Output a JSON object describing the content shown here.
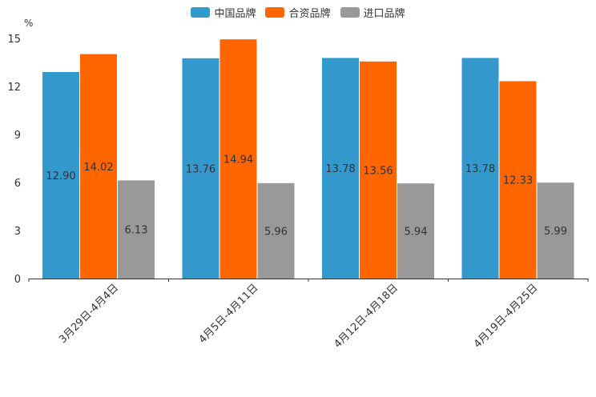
{
  "chart_data": {
    "type": "bar",
    "unit": "%",
    "categories": [
      "3月29日-4月4日",
      "4月5日-4月11日",
      "4月12日-4月18日",
      "4月19日-4月25日"
    ],
    "series": [
      {
        "name": "中国品牌",
        "color": "#3399cc",
        "values": [
          12.9,
          13.76,
          13.78,
          13.78
        ],
        "labels": [
          "12.90",
          "13.76",
          "13.78",
          "13.78"
        ]
      },
      {
        "name": "合资品牌",
        "color": "#ff6600",
        "values": [
          14.02,
          14.94,
          13.56,
          12.33
        ],
        "labels": [
          "14.02",
          "14.94",
          "13.56",
          "12.33"
        ]
      },
      {
        "name": "进口品牌",
        "color": "#999999",
        "values": [
          6.13,
          5.96,
          5.94,
          5.99
        ],
        "labels": [
          "6.13",
          "5.96",
          "5.94",
          "5.99"
        ]
      }
    ],
    "yticks": [
      "0",
      "3",
      "6",
      "9",
      "12",
      "15"
    ],
    "ylim": [
      0,
      15
    ]
  }
}
